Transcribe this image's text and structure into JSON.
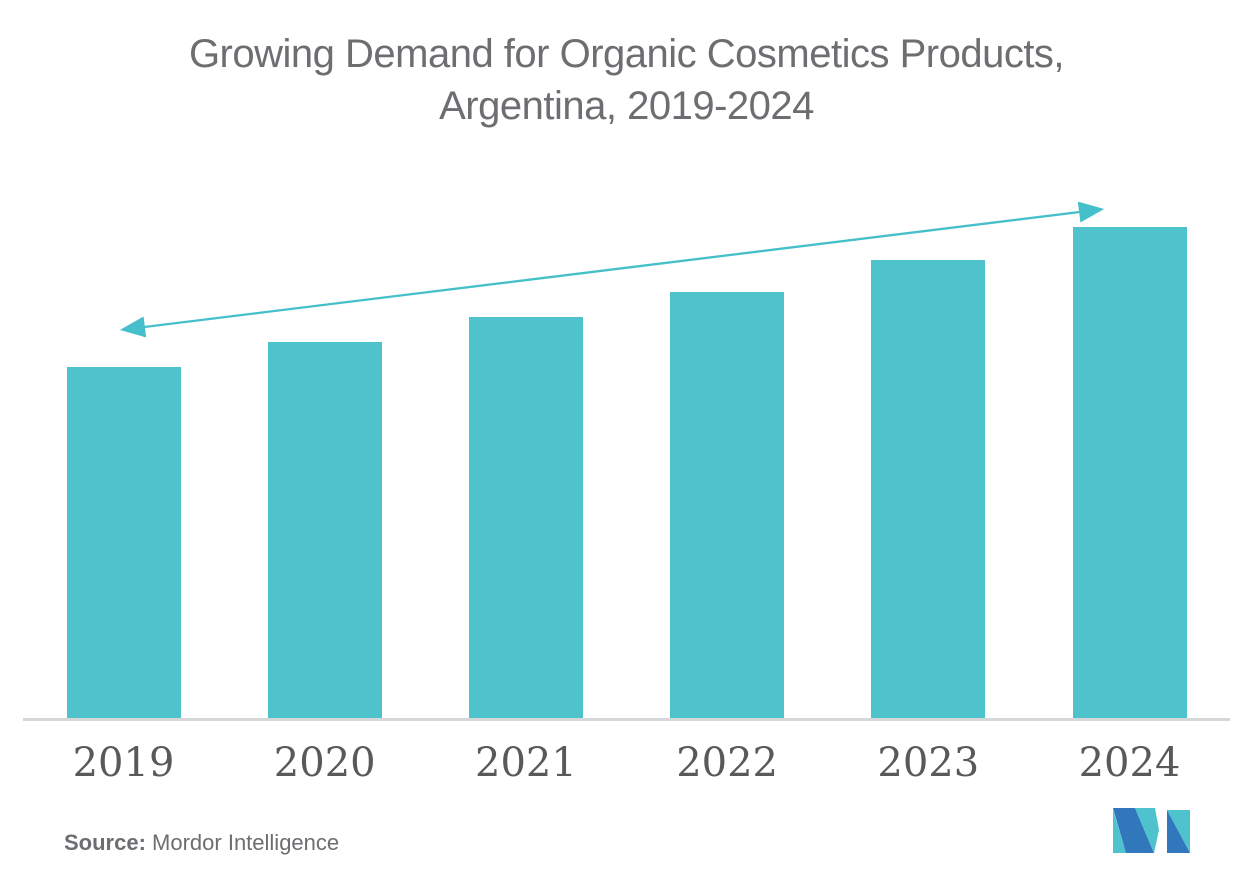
{
  "title": "Growing Demand for Organic Cosmetics Products,\nArgentina,  2019-2024",
  "chart_data": {
    "type": "bar",
    "title": "Growing Demand for Organic Cosmetics Products, Argentina, 2019-2024",
    "categories": [
      "2019",
      "2020",
      "2021",
      "2022",
      "2023",
      "2024"
    ],
    "values": [
      71.5,
      76.6,
      81.7,
      86.8,
      93.3,
      100
    ],
    "values_note": "no y-axis shown; values estimated as percent of tallest (2024) bar",
    "xlabel": "",
    "ylabel": "",
    "ylim": [
      0,
      100
    ],
    "grid": false,
    "legend": null,
    "bar_color": "#4fc3cc",
    "trend_arrow": {
      "present": true,
      "double_headed": true,
      "direction": "up-to-the-right",
      "color": "#45c0ca"
    }
  },
  "footer": {
    "source_label": "Source:",
    "source_value": " Mordor Intelligence"
  },
  "colors": {
    "background": "#ffffff",
    "title_text": "#6d6e71",
    "tick_text": "#58595b",
    "axis_line": "#d6d7d8",
    "source_text": "#6d6e71"
  },
  "logo": {
    "name": "mordor-intelligence-logo",
    "blue": "#3077bc",
    "teal": "#4ec3cd"
  }
}
